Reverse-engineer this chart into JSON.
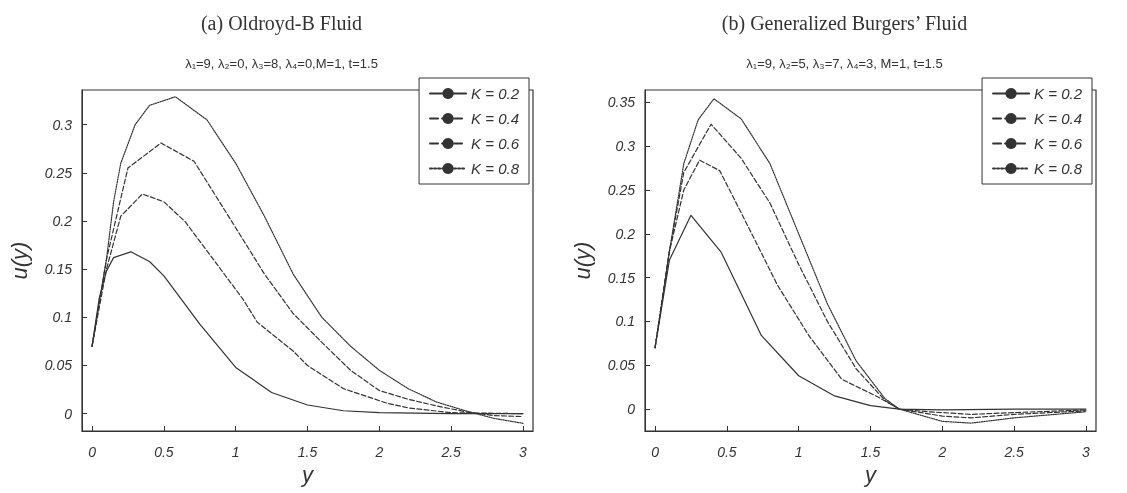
{
  "chart_data": [
    {
      "type": "line",
      "title": "(a) Oldroyd-B Fluid",
      "subtitle": "λ₁=9, λ₂=0, λ₃=8, λ₄=0,M=1, t=1.5",
      "xlabel": "y",
      "ylabel": "u(y)",
      "xlim": [
        -0.07,
        3.07
      ],
      "xticks": [
        0,
        0.5,
        1,
        1.5,
        2,
        2.5,
        3
      ],
      "ylim": [
        -0.018,
        0.336
      ],
      "yticks": [
        0,
        0.05,
        0.1,
        0.15,
        0.2,
        0.25,
        0.3
      ],
      "grid": false,
      "legend": "top right",
      "marker": "none",
      "series": [
        {
          "name": "K = 0.2",
          "color": "#333333",
          "line_style": "solid",
          "x": [
            0,
            0.05,
            0.1,
            0.15,
            0.27,
            0.4,
            0.5,
            0.6,
            0.75,
            1,
            1.25,
            1.5,
            1.75,
            2,
            2.5,
            3
          ],
          "values": [
            0.07,
            0.12,
            0.148,
            0.162,
            0.168,
            0.158,
            0.143,
            0.123,
            0.093,
            0.048,
            0.022,
            0.009,
            0.003,
            0.001,
            0,
            0
          ]
        },
        {
          "name": "K = 0.4",
          "color": "#333333",
          "line_style": "dashed",
          "x": [
            0,
            0.1,
            0.2,
            0.35,
            0.5,
            0.65,
            0.79,
            0.92,
            1.05,
            1.15,
            1.4,
            1.5,
            1.75,
            2.05,
            2.2,
            2.5,
            3
          ],
          "values": [
            0.07,
            0.15,
            0.205,
            0.228,
            0.22,
            0.199,
            0.171,
            0.145,
            0.119,
            0.095,
            0.065,
            0.05,
            0.026,
            0.011,
            0.006,
            0.001,
            0
          ]
        },
        {
          "name": "K = 0.6",
          "color": "#333333",
          "line_style": "dashed",
          "x": [
            0,
            0.1,
            0.25,
            0.48,
            0.71,
            1,
            1.2,
            1.4,
            1.6,
            1.8,
            2,
            2.2,
            2.4,
            2.6,
            2.8,
            3
          ],
          "values": [
            0.07,
            0.16,
            0.255,
            0.281,
            0.262,
            0.193,
            0.145,
            0.104,
            0.074,
            0.045,
            0.024,
            0.015,
            0.008,
            0.002,
            -0.002,
            -0.003
          ]
        },
        {
          "name": "K = 0.8",
          "color": "#333333",
          "line_style": "dotted",
          "x": [
            0,
            0.1,
            0.15,
            0.2,
            0.3,
            0.4,
            0.58,
            0.8,
            1,
            1.2,
            1.4,
            1.6,
            1.8,
            2,
            2.2,
            2.4,
            2.6,
            2.8,
            3
          ],
          "values": [
            0.07,
            0.16,
            0.22,
            0.26,
            0.3,
            0.32,
            0.329,
            0.305,
            0.26,
            0.205,
            0.145,
            0.1,
            0.07,
            0.045,
            0.026,
            0.012,
            0.003,
            -0.005,
            -0.01
          ]
        }
      ]
    },
    {
      "type": "line",
      "title": "(b) Generalized Burgers’ Fluid",
      "subtitle": "λ₁=9, λ₂=5, λ₃=7, λ₄=3, M=1, t=1.5",
      "xlabel": "y",
      "ylabel": "u(y)",
      "xlim": [
        -0.07,
        3.07
      ],
      "xticks": [
        0,
        0.5,
        1,
        1.5,
        2,
        2.5,
        3
      ],
      "ylim": [
        -0.025,
        0.364
      ],
      "yticks": [
        0,
        0.05,
        0.1,
        0.15,
        0.2,
        0.25,
        0.3,
        0.35
      ],
      "grid": false,
      "legend": "top right",
      "marker": "none",
      "series": [
        {
          "name": "K = 0.2",
          "color": "#333333",
          "line_style": "solid",
          "x": [
            0,
            0.1,
            0.25,
            0.46,
            0.74,
            1,
            1.25,
            1.5,
            1.7,
            2,
            2.5,
            3
          ],
          "values": [
            0.07,
            0.17,
            0.221,
            0.179,
            0.084,
            0.038,
            0.015,
            0.004,
            0,
            -0.001,
            0,
            0
          ]
        },
        {
          "name": "K = 0.4",
          "color": "#333333",
          "line_style": "dashed",
          "x": [
            0,
            0.1,
            0.2,
            0.31,
            0.45,
            0.55,
            0.75,
            0.85,
            1.07,
            1.3,
            1.55,
            1.7,
            1.9,
            2.2,
            2.5,
            3
          ],
          "values": [
            0.07,
            0.18,
            0.25,
            0.284,
            0.272,
            0.24,
            0.175,
            0.142,
            0.084,
            0.034,
            0.014,
            0,
            -0.003,
            -0.006,
            -0.004,
            -0.001
          ]
        },
        {
          "name": "K = 0.6",
          "color": "#333333",
          "line_style": "dashed",
          "x": [
            0,
            0.1,
            0.2,
            0.39,
            0.6,
            0.8,
            1,
            1.2,
            1.4,
            1.6,
            1.7,
            2,
            2.2,
            2.5,
            3
          ],
          "values": [
            0.07,
            0.18,
            0.27,
            0.325,
            0.286,
            0.235,
            0.165,
            0.1,
            0.046,
            0.01,
            0,
            -0.008,
            -0.01,
            -0.006,
            -0.002
          ]
        },
        {
          "name": "K = 0.8",
          "color": "#333333",
          "line_style": "dotted",
          "x": [
            0,
            0.1,
            0.2,
            0.3,
            0.41,
            0.6,
            0.8,
            1,
            1.2,
            1.4,
            1.6,
            1.7,
            2,
            2.2,
            2.5,
            3
          ],
          "values": [
            0.07,
            0.18,
            0.28,
            0.33,
            0.354,
            0.331,
            0.28,
            0.2,
            0.12,
            0.055,
            0.012,
            0,
            -0.014,
            -0.016,
            -0.01,
            -0.003
          ]
        }
      ]
    }
  ]
}
